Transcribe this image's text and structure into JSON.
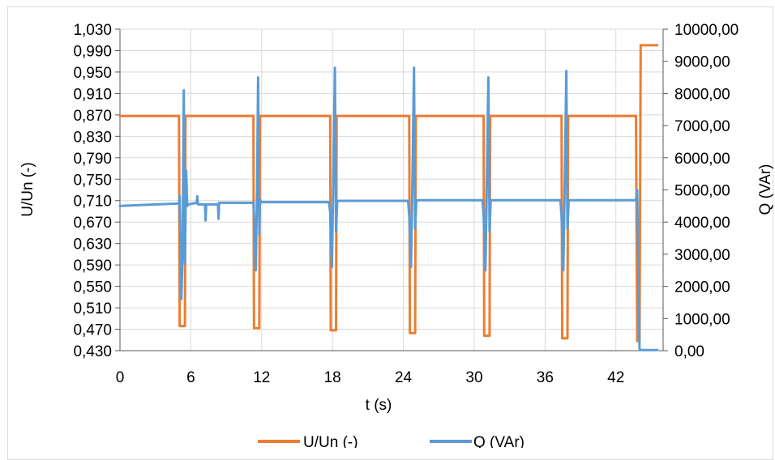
{
  "chart_data": {
    "type": "line",
    "title": "",
    "xlabel": "t (s)",
    "ylabel": "U/Un (-)",
    "y2label": "Q (VAr)",
    "xlim": [
      0,
      46
    ],
    "ylim": [
      0.43,
      1.03
    ],
    "y2lim": [
      0,
      10000
    ],
    "x_ticks": [
      "0",
      "6",
      "12",
      "18",
      "24",
      "30",
      "36",
      "42"
    ],
    "y_ticks": [
      "0,430",
      "0,470",
      "0,510",
      "0,550",
      "0,590",
      "0,630",
      "0,670",
      "0,710",
      "0,750",
      "0,790",
      "0,830",
      "0,870",
      "0,910",
      "0,950",
      "0,990",
      "1,030"
    ],
    "y2_ticks": [
      "0,00",
      "1000,00",
      "2000,00",
      "3000,00",
      "4000,00",
      "5000,00",
      "6000,00",
      "7000,00",
      "8000,00",
      "9000,00",
      "10000,00"
    ],
    "grid": true,
    "legend_position": "bottom",
    "series": [
      {
        "name": "U/Un (-)",
        "axis": "left",
        "color": "#ED7D31",
        "x": [
          0,
          5.0,
          5.05,
          5.5,
          5.55,
          11.3,
          11.35,
          11.8,
          11.85,
          17.8,
          17.85,
          18.3,
          18.35,
          24.5,
          24.55,
          25.0,
          25.05,
          30.8,
          30.85,
          31.3,
          31.35,
          37.4,
          37.45,
          37.9,
          37.95,
          43.7,
          43.8,
          44.0,
          44.1,
          44.6,
          45.5
        ],
        "values": [
          0.868,
          0.868,
          0.476,
          0.476,
          0.868,
          0.868,
          0.472,
          0.472,
          0.868,
          0.868,
          0.468,
          0.468,
          0.868,
          0.868,
          0.463,
          0.463,
          0.868,
          0.868,
          0.458,
          0.458,
          0.868,
          0.868,
          0.453,
          0.453,
          0.868,
          0.868,
          0.448,
          0.448,
          1.0,
          1.0,
          1.0
        ]
      },
      {
        "name": "Q (VAr)",
        "axis": "right",
        "color": "#5B9BD5",
        "x": [
          0,
          5.0,
          5.05,
          5.2,
          5.3,
          5.4,
          5.5,
          5.6,
          5.7,
          5.8,
          6.5,
          6.55,
          6.6,
          7.2,
          7.25,
          7.3,
          8.3,
          8.35,
          8.4,
          11.3,
          11.35,
          11.5,
          11.6,
          11.7,
          11.8,
          11.85,
          11.95,
          17.7,
          17.8,
          17.95,
          18.05,
          18.2,
          18.3,
          18.4,
          24.4,
          24.5,
          24.65,
          24.75,
          24.9,
          25.0,
          25.1,
          30.7,
          30.8,
          30.95,
          31.05,
          31.2,
          31.3,
          31.4,
          37.3,
          37.4,
          37.55,
          37.65,
          37.8,
          37.9,
          38.0,
          43.6,
          43.7,
          43.8,
          43.9,
          44.0,
          44.1,
          44.5,
          45.5
        ],
        "values": [
          4500,
          4580,
          4800,
          1600,
          3000,
          8100,
          2700,
          5600,
          4500,
          4550,
          4600,
          4800,
          4550,
          4550,
          4050,
          4550,
          4550,
          4100,
          4600,
          4600,
          4200,
          2500,
          4900,
          8500,
          3600,
          4700,
          4620,
          4620,
          4300,
          2600,
          4900,
          8800,
          3700,
          4660,
          4660,
          4200,
          2600,
          4800,
          8800,
          3800,
          4680,
          4680,
          4200,
          2500,
          4800,
          8500,
          3700,
          4680,
          4680,
          4200,
          2500,
          4800,
          8700,
          3800,
          4680,
          4680,
          4700,
          5000,
          2600,
          50,
          20,
          20,
          20
        ]
      }
    ]
  }
}
